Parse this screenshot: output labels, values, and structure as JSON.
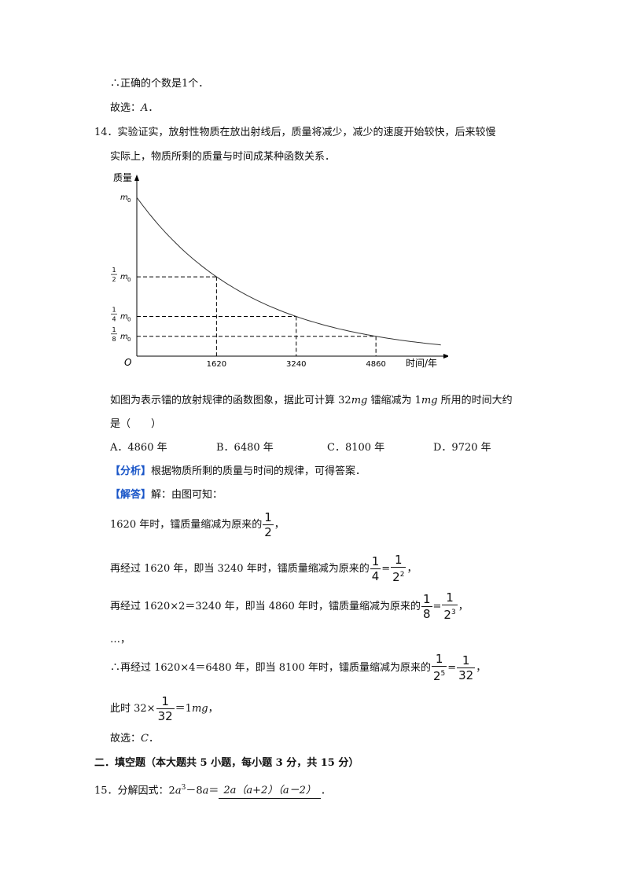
{
  "lines": {
    "l1": "∴正确的个数是1个．",
    "l2_prefix": "故选：",
    "l2_ans": "A",
    "l2_end": "．",
    "q14_a": "14．实验证实，放射性物质在放出射线后，质量将减少，减少的速度开始较快，后来较慢",
    "q14_b": "实际上，物质所剩的质量与时间成某种函数关系．",
    "q14_c_pre": "如图为表示镭的放射规律的函数图象，据此可计算 32",
    "q14_c_unit1": "mg",
    "q14_c_mid": " 镭缩减为 1",
    "q14_c_unit2": "mg",
    "q14_c_post": " 所用的时间大约",
    "q14_d": "是（　　）",
    "optA": "A．4860 年",
    "optB": "B．6480 年",
    "optC": "C．8100 年",
    "optD": "D．9720 年",
    "analysis_tag": "【分析】",
    "analysis_text": "根据物质所剩的质量与时间的规律，可得答案．",
    "solution_tag": "【解答】",
    "solution_text": "解：由图可知：",
    "s1": "1620 年时，镭质量缩减为原来的",
    "s1_end": "，",
    "s2": "再经过 1620 年，即当 3240 年时，镭质量缩减为原来的",
    "s2_end": "，",
    "s3": "再经过 1620×2＝3240 年，即当 4860 年时，镭质量缩减为原来的",
    "s3_end": "，",
    "s4": "…，",
    "s5": "∴再经过 1620×4＝6480 年，即当 8100 年时，镭质量缩减为原来的",
    "s5_end": "，",
    "s6_pre": "此时 32×",
    "s6_post": "＝1",
    "s6_unit": "mg",
    "s6_end": "，",
    "s7_prefix": "故选：",
    "s7_ans": "C",
    "s7_end": "．",
    "section2": "二．填空题（本大题共 5 小题，每小题 3 分，共 15 分）",
    "q15_pre": "15．分解因式：2",
    "q15_a": "a",
    "q15_exp": "3",
    "q15_mid": "－8",
    "q15_a2": "a",
    "q15_eq": "＝",
    "q15_answer": "2a（a+2）（a－2）",
    "q15_end": "．"
  },
  "fractions": {
    "one": "1",
    "two": "2",
    "four": "4",
    "eight": "8",
    "thirtytwo": "32",
    "two_sq": "2",
    "two_sq_exp": "2",
    "two_cube": "2",
    "two_cube_exp": "3",
    "two_five": "2",
    "two_five_exp": "5",
    "eq": "="
  },
  "chart_data": {
    "type": "line",
    "ylabel": "质量",
    "xlabel": "时间/年",
    "origin_label": "O",
    "x_ticks": [
      "1620",
      "3240",
      "4860"
    ],
    "y_ticks": [
      {
        "coef_num": "",
        "coef_den": "",
        "sym": "m",
        "sub": "0"
      },
      {
        "coef_num": "1",
        "coef_den": "2",
        "sym": "m",
        "sub": "0"
      },
      {
        "coef_num": "1",
        "coef_den": "4",
        "sym": "m",
        "sub": "0"
      },
      {
        "coef_num": "1",
        "coef_den": "8",
        "sym": "m",
        "sub": "0"
      }
    ],
    "x": [
      0,
      1620,
      3240,
      4860
    ],
    "y": [
      1,
      0.5,
      0.25,
      0.125
    ],
    "x_max": 6200,
    "y_max": 1.1,
    "grid": false
  }
}
